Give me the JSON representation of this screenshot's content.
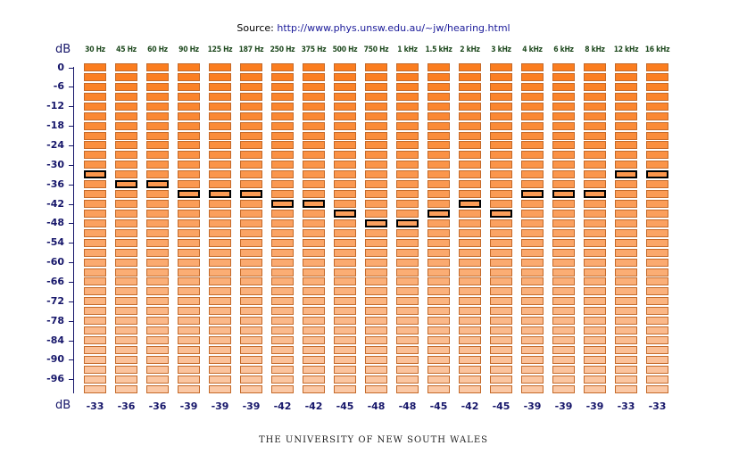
{
  "source": {
    "label": "Source:",
    "url": "http://www.phys.unsw.edu.au/~jw/hearing.html"
  },
  "axis": {
    "unit_top": "dB",
    "unit_bottom": "dB",
    "ticks": [
      "0",
      "-6",
      "-12",
      "-18",
      "-24",
      "-30",
      "-36",
      "-42",
      "-48",
      "-54",
      "-60",
      "-66",
      "-72",
      "-78",
      "-84",
      "-90",
      "-96"
    ]
  },
  "frequencies": [
    "30 Hz",
    "45 Hz",
    "60 Hz",
    "90 Hz",
    "125 Hz",
    "187 Hz",
    "250 Hz",
    "375 Hz",
    "500 Hz",
    "750 Hz",
    "1 kHz",
    "1.5 kHz",
    "2 kHz",
    "3 kHz",
    "4 kHz",
    "6 kHz",
    "8 kHz",
    "12 kHz",
    "16 kHz"
  ],
  "selected_db": [
    "-33",
    "-36",
    "-36",
    "-39",
    "-39",
    "-39",
    "-42",
    "-42",
    "-45",
    "-48",
    "-48",
    "-45",
    "-42",
    "-45",
    "-39",
    "-39",
    "-39",
    "-33",
    "-33"
  ],
  "levels_db_per_step": 3,
  "level_count": 34,
  "colors": {
    "cell_top": "#fb7d1f",
    "cell_bottom": "#fbc8a5",
    "cell_border": "#c46a2a",
    "selected_border": "#000000",
    "axis": "#16166a",
    "freq_label": "#1f4a1f",
    "link": "#1a1a99"
  },
  "footer": "THE UNIVERSITY OF NEW SOUTH WALES"
}
